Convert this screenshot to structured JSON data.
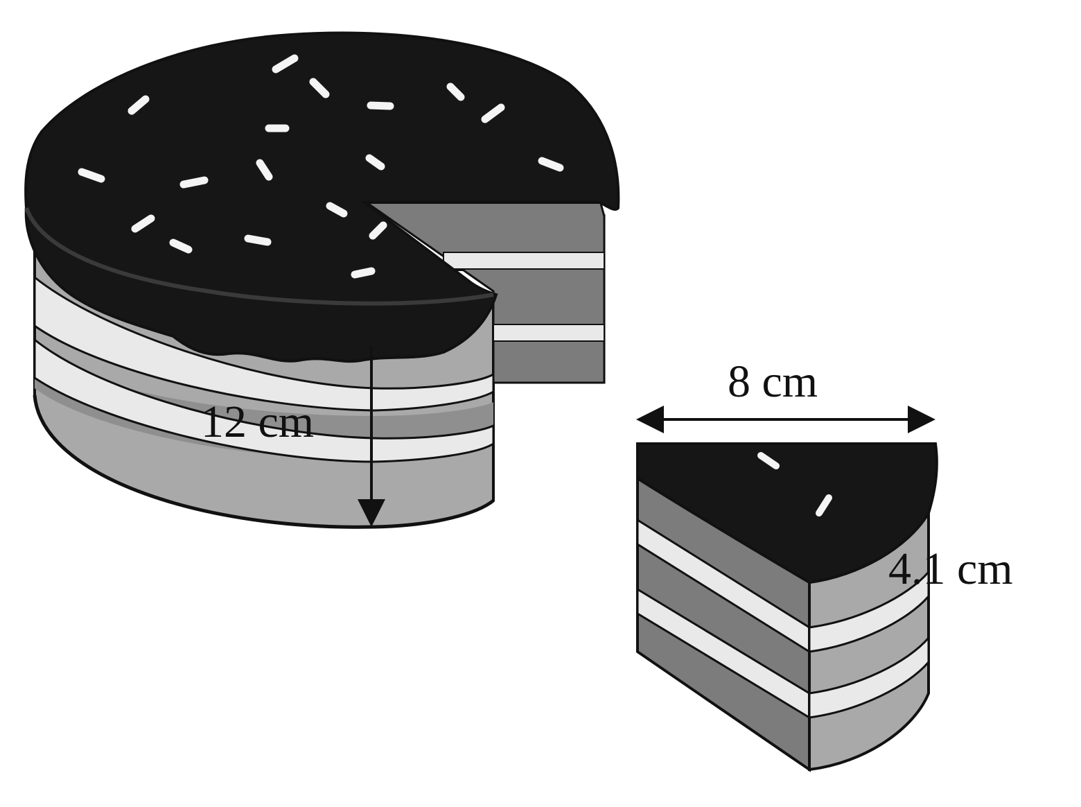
{
  "labels": {
    "whole_cake_height": "12 cm",
    "slice_width": "8 cm",
    "slice_height": "4.1 cm"
  },
  "colors": {
    "frosting": "#161616",
    "frosting_edge": "#2a2a2a",
    "sponge_light": "#a9a9a9",
    "sponge_dark": "#7c7c7c",
    "sponge_mid": "#8f8f8f",
    "cream": "#e9e9e9",
    "sprinkle": "#f4f4f4",
    "outline": "#111111"
  }
}
